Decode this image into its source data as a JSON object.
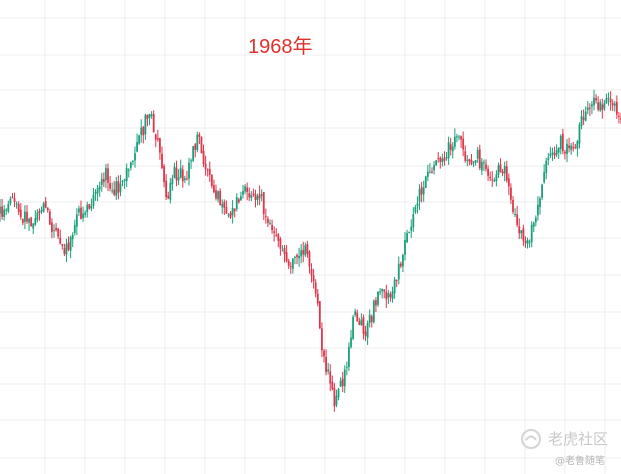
{
  "title": "1968年",
  "watermark": {
    "brand": "老虎社区",
    "handle": "@老鲁随笔",
    "logo_icon": "tiger-community-logo-icon"
  },
  "colors": {
    "up": "#1a9e7a",
    "down": "#e0344a",
    "title": "#e0312c",
    "grid": "#eeeeee"
  },
  "chart_data": {
    "type": "candlestick",
    "title": "1968年",
    "xlabel": "",
    "ylabel": "",
    "grid": true,
    "legend": "none",
    "ylim": [
      0,
      100
    ],
    "note_values": "relative price level (axes not printed)",
    "anchors_x": [
      0,
      2,
      3,
      5,
      7,
      9,
      11,
      12,
      15,
      17,
      18,
      20,
      22,
      24,
      25,
      27,
      28,
      30,
      32,
      33,
      35,
      37,
      38,
      40,
      42,
      44,
      45,
      47,
      49,
      51,
      52,
      54,
      56,
      57,
      59,
      61,
      63,
      65,
      67,
      68,
      70,
      72,
      74,
      75,
      77,
      79,
      81,
      83,
      85,
      87,
      88,
      90,
      92,
      93,
      95,
      97,
      98,
      100
    ],
    "anchors_y": [
      60,
      64,
      60,
      58,
      62,
      54,
      50,
      58,
      64,
      70,
      66,
      68,
      76,
      86,
      80,
      64,
      70,
      70,
      80,
      72,
      64,
      60,
      62,
      66,
      64,
      54,
      52,
      46,
      52,
      40,
      24,
      12,
      22,
      34,
      30,
      40,
      38,
      50,
      62,
      66,
      72,
      76,
      80,
      72,
      74,
      68,
      72,
      58,
      52,
      64,
      72,
      78,
      76,
      80,
      88,
      86,
      90,
      84
    ]
  }
}
